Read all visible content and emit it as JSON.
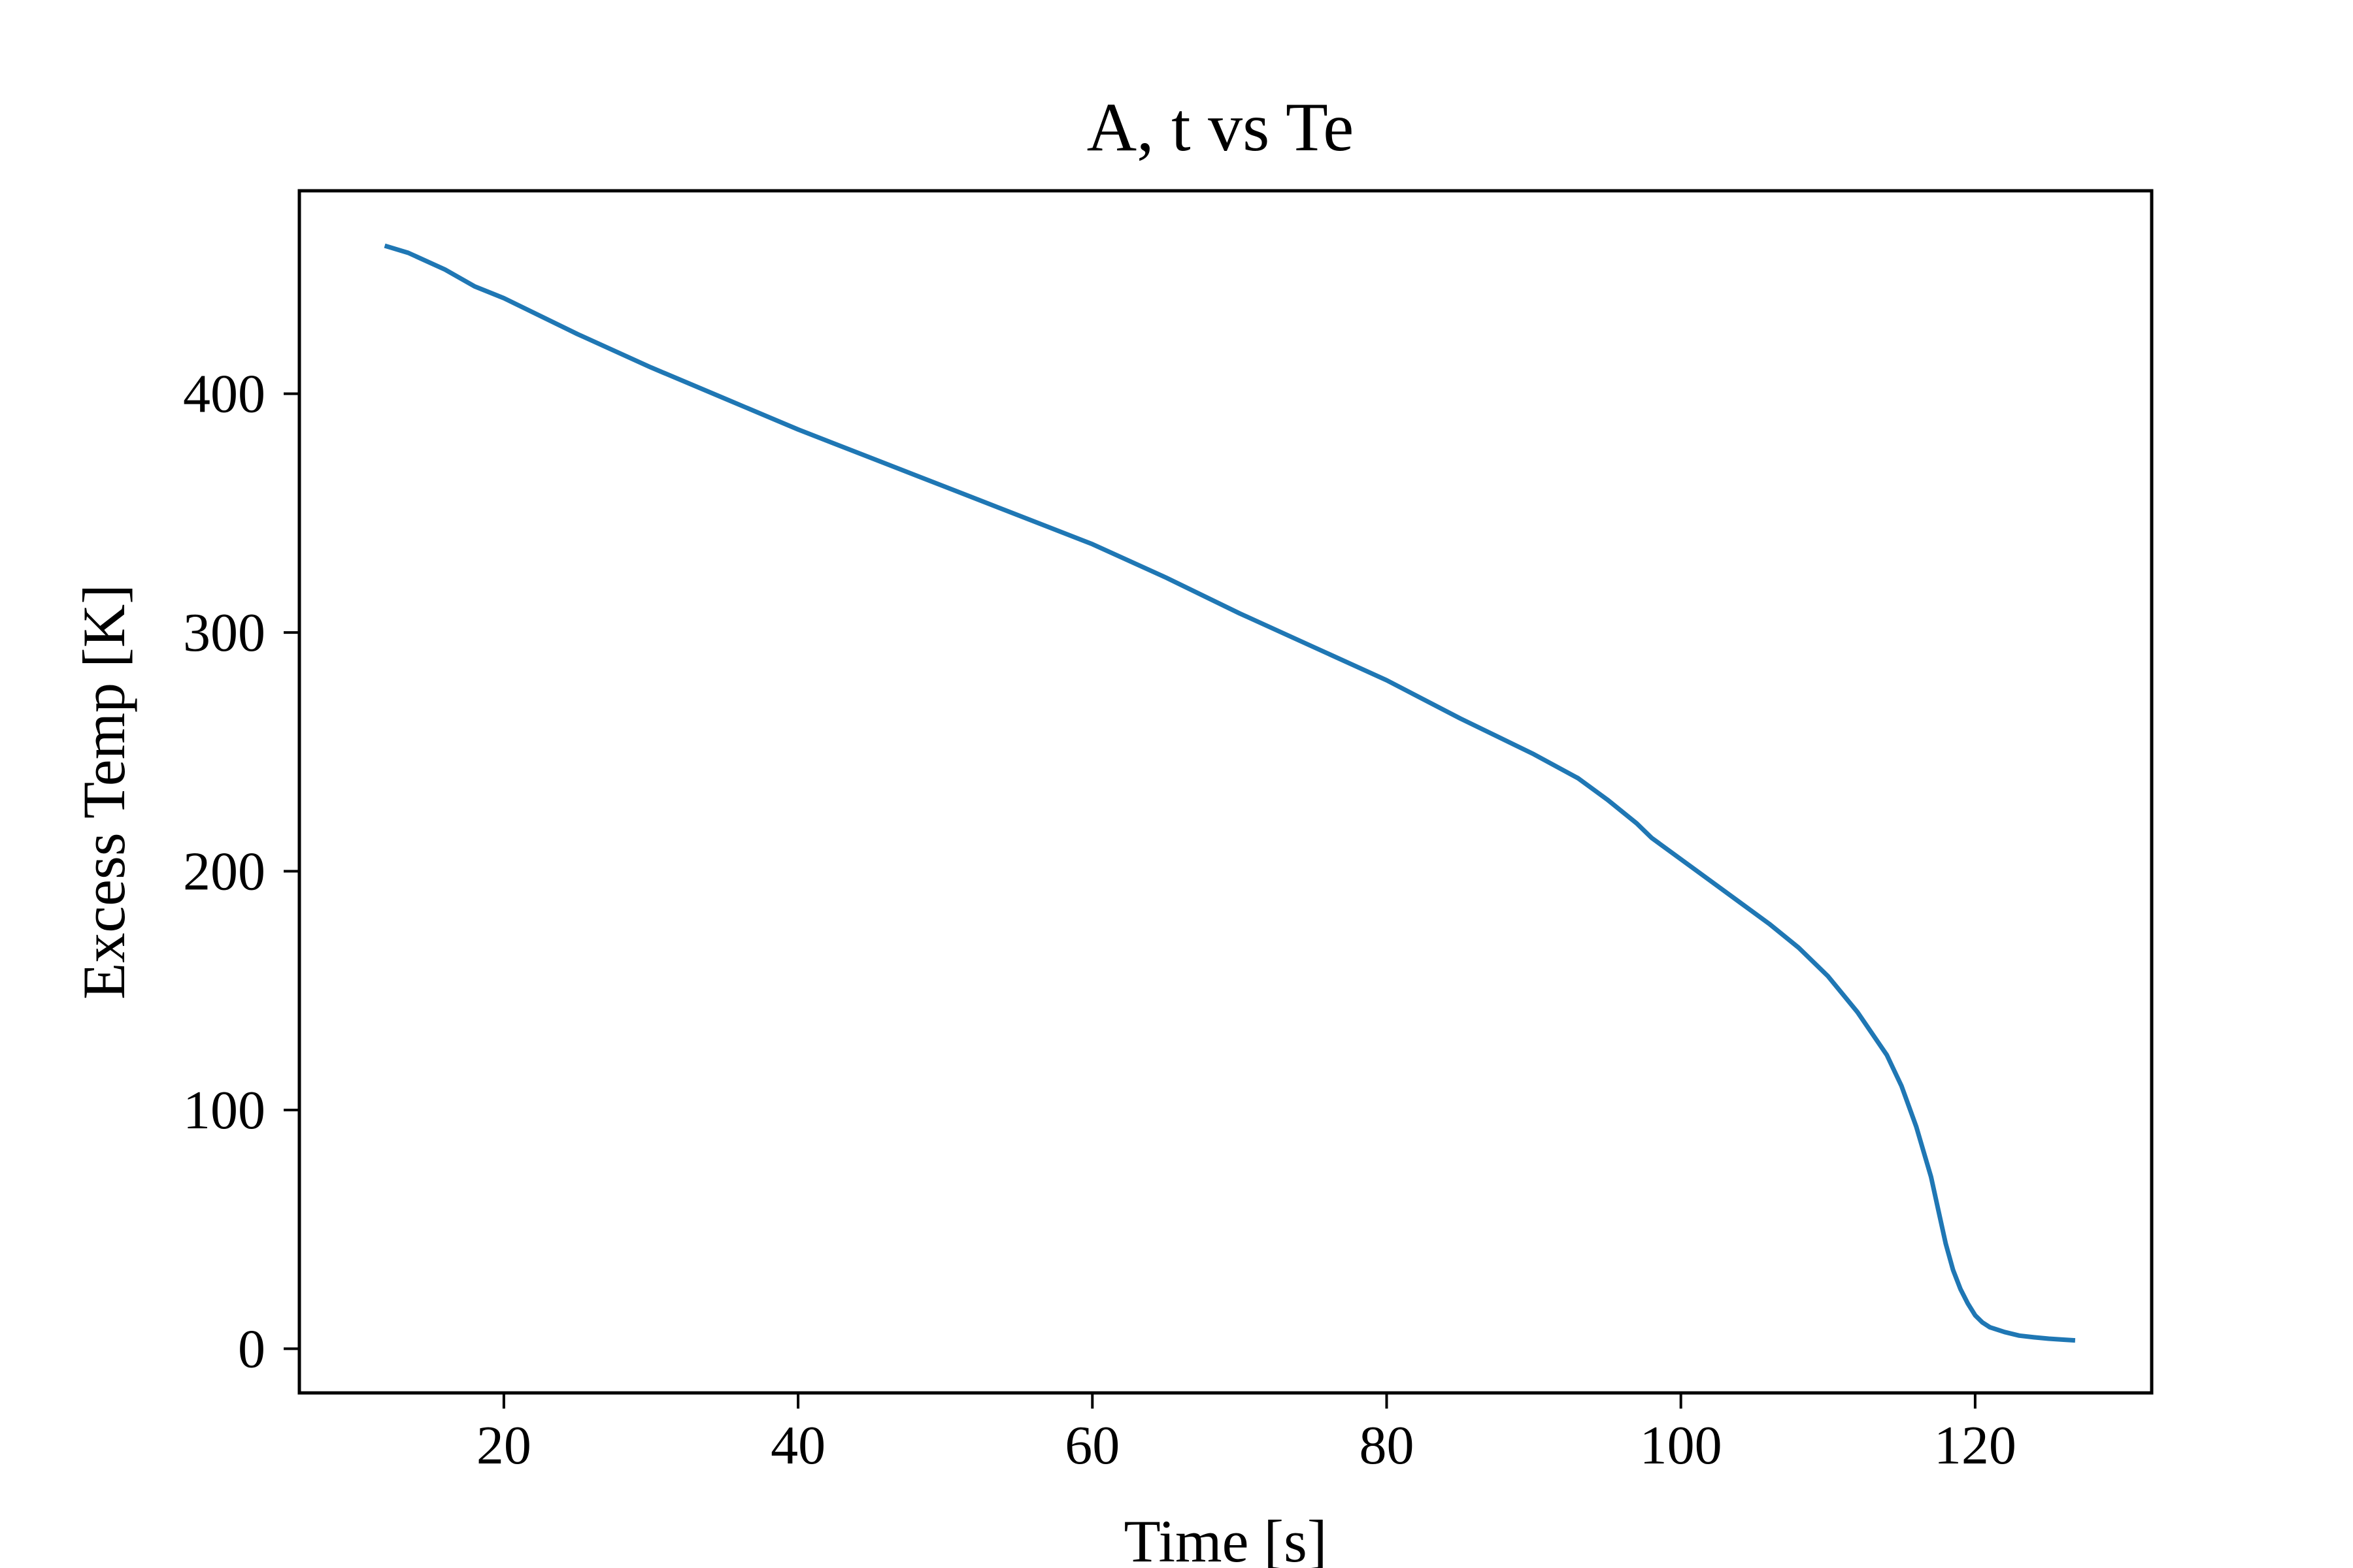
{
  "chart_data": {
    "type": "line",
    "title": "A, t vs Te",
    "xlabel": "Time [s]",
    "ylabel": "Excess Temp [K]",
    "xlim": [
      6.1,
      132.0
    ],
    "ylim": [
      -18.5,
      485.0
    ],
    "xticks": [
      20,
      40,
      60,
      80,
      100,
      120
    ],
    "yticks": [
      0,
      100,
      200,
      300,
      400
    ],
    "grid": false,
    "legend": "none",
    "series": [
      {
        "color": "#1f77b4",
        "x": [
          11.9,
          13.5,
          16,
          18,
          20,
          25,
          30,
          35,
          40,
          45,
          50,
          55,
          60,
          65,
          70,
          75,
          80,
          85,
          90,
          93,
          95,
          97,
          98,
          100,
          102,
          104,
          106,
          108,
          110,
          112,
          114,
          115,
          116,
          117,
          117.5,
          118,
          118.5,
          119,
          119.5,
          120,
          120.5,
          121,
          122,
          123,
          124,
          125,
          126,
          126.8
        ],
        "y": [
          462,
          459,
          452,
          445,
          440,
          425,
          411,
          398,
          385,
          373,
          361,
          349,
          337,
          323,
          308,
          294,
          280,
          264,
          249,
          239,
          230,
          220,
          214,
          205,
          196,
          187,
          178,
          168,
          156,
          141,
          123,
          110,
          93,
          72,
          58,
          44,
          33,
          25,
          19,
          14,
          11,
          9,
          7,
          5.5,
          4.8,
          4.2,
          3.8,
          3.5
        ]
      }
    ]
  }
}
